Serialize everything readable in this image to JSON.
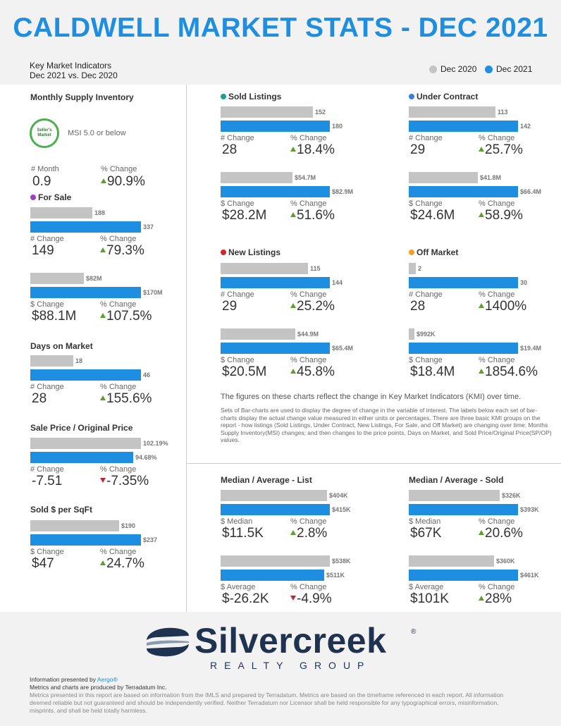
{
  "header": {
    "title": "CALDWELL MARKET STATS - DEC 2021",
    "subtitle_line1": "Key Market Indicators",
    "subtitle_line2": "Dec 2021 vs. Dec 2020"
  },
  "legend": {
    "prev": "Dec 2020",
    "curr": "Dec 2021",
    "prev_color": "#c4c4c4",
    "curr_color": "#1e8fe0"
  },
  "msi": {
    "title": "Monthly Supply Inventory",
    "badge": "Seller's Market",
    "badge_note": "MSI 5.0 or below",
    "l1": "# Month",
    "l2": "% Change",
    "v1": "0.9",
    "v2": "90.9%"
  },
  "for_sale": {
    "title": "For Sale",
    "dot": "#9c3fc4",
    "count": {
      "prev": "188",
      "curr": "337",
      "prev_pct": 0.558,
      "l1": "# Change",
      "l2": "% Change",
      "v1": "149",
      "v2": "79.3%"
    },
    "volume": {
      "prev": "$82M",
      "curr": "$170M",
      "prev_pct": 0.482,
      "l1": "$ Change",
      "l2": "% Change",
      "v1": "$88.1M",
      "v2": "107.5%"
    }
  },
  "dom": {
    "title": "Days on Market",
    "prev": "18",
    "curr": "46",
    "prev_pct": 0.391,
    "l1": "# Change",
    "l2": "% Change",
    "v1": "28",
    "v2": "155.6%"
  },
  "sp_op": {
    "title": "Sale Price / Original Price",
    "prev": "102.19%",
    "curr": "94.68%",
    "prev_pct": 1.0,
    "curr_pct": 0.927,
    "l1": "# Change",
    "l2": "% Change",
    "v1": "-7.51",
    "v2": "-7.35%"
  },
  "sqft": {
    "title": "Sold $ per SqFt",
    "prev": "$190",
    "curr": "$237",
    "prev_pct": 0.802,
    "l1": "$ Change",
    "l2": "% Change",
    "v1": "$47",
    "v2": "24.7%"
  },
  "sold": {
    "title": "Sold Listings",
    "dot": "#1e9e8f",
    "count": {
      "prev": "152",
      "curr": "180",
      "prev_pct": 0.844,
      "l1": "# Change",
      "l2": "% Change",
      "v1": "28",
      "v2": "18.4%"
    },
    "volume": {
      "prev": "$54.7M",
      "curr": "$82.9M",
      "prev_pct": 0.66,
      "l1": "$ Change",
      "l2": "% Change",
      "v1": "$28.2M",
      "v2": "51.6%"
    }
  },
  "under_contract": {
    "title": "Under Contract",
    "dot": "#3b7dd8",
    "count": {
      "prev": "113",
      "curr": "142",
      "prev_pct": 0.796,
      "l1": "# Change",
      "l2": "% Change",
      "v1": "29",
      "v2": "25.7%"
    },
    "volume": {
      "prev": "$41.8M",
      "curr": "$66.4M",
      "prev_pct": 0.63,
      "l1": "$ Change",
      "l2": "% Change",
      "v1": "$24.6M",
      "v2": "58.9%"
    }
  },
  "new_listings": {
    "title": "New Listings",
    "dot": "#d0262d",
    "count": {
      "prev": "115",
      "curr": "144",
      "prev_pct": 0.799,
      "l1": "# Change",
      "l2": "% Change",
      "v1": "29",
      "v2": "25.2%"
    },
    "volume": {
      "prev": "$44.9M",
      "curr": "$65.4M",
      "prev_pct": 0.687,
      "l1": "$ Change",
      "l2": "% Change",
      "v1": "$20.5M",
      "v2": "45.8%"
    }
  },
  "off_market": {
    "title": "Off Market",
    "dot": "#f0a030",
    "count": {
      "prev": "2",
      "curr": "30",
      "prev_pct": 0.067,
      "l1": "# Change",
      "l2": "% Change",
      "v1": "28",
      "v2": "1400%"
    },
    "volume": {
      "prev": "$992K",
      "curr": "$19.4M",
      "prev_pct": 0.051,
      "l1": "$ Change",
      "l2": "% Change",
      "v1": "$18.4M",
      "v2": "1854.6%"
    }
  },
  "notes": {
    "line1": "The figures on these charts reflect the change in Key Market Indicators (KMI) over time.",
    "para": "Sets of Bar-charts are used to display the degree of change in the variable of interest. The labels below each set of bar-charts display the actual change value measured in either units or percentages. There are three basic KMI groups on the report - how listings (Sold Listings, Under Contract, New Listings, For Sale, and Off Market) are changing over time; Months Supply Inventory(MSI) changes; and then changes to the price points, Days on Market, and Sold Price/Original Price(SP/OP) values."
  },
  "list_prices": {
    "title": "Median / Average - List",
    "median": {
      "prev": "$404K",
      "curr": "$415K",
      "prev_pct": 0.973,
      "l1": "$ Median",
      "l2": "% Change",
      "v1": "$11.5K",
      "v2": "2.8%"
    },
    "average": {
      "prev": "$538K",
      "curr": "$511K",
      "prev_pct": 1.0,
      "curr_pct": 0.95,
      "l1": "$ Average",
      "l2": "% Change",
      "v1": "$-26.2K",
      "v2": "-4.9%"
    }
  },
  "sold_prices": {
    "title": "Median / Average - Sold",
    "median": {
      "prev": "$326K",
      "curr": "$393K",
      "prev_pct": 0.83,
      "l1": "$ Median",
      "l2": "% Change",
      "v1": "$67K",
      "v2": "20.6%"
    },
    "average": {
      "prev": "$360K",
      "curr": "$461K",
      "prev_pct": 0.781,
      "l1": "$ Average",
      "l2": "% Change",
      "v1": "$101K",
      "v2": "28%"
    }
  },
  "logo": {
    "name": "Silvercreek",
    "sub": "REALTY GROUP",
    "reg": "®"
  },
  "footer": {
    "presented_prefix": "Information presented by ",
    "presented_by": "Aergo®",
    "produced": "Metrics and charts are produced by Terradatum Inc.",
    "disclaimer": "Metrics presented in this report are based on information from the IMLS and prepared by Terradatum. Metrics are based on the timeframe referenced in each report. All information deemed reliable but not guaranteed and should be independently verified. Neither Terradatum nor Licensor shall be held responsible for any typographical errors, misinformation, misprints, and shall be held totally harmless."
  }
}
